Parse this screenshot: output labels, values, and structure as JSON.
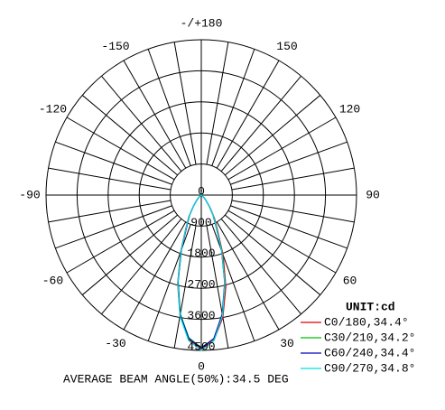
{
  "chart_data": {
    "type": "polar",
    "title": "AVERAGE BEAM ANGLE(50%):34.5 DEG",
    "legend_title": "UNIT:cd",
    "rlim": [
      0,
      4500
    ],
    "rticks": [
      0,
      900,
      1800,
      2700,
      3600,
      4500
    ],
    "angle_ticks": [
      {
        "value": 180,
        "label": "-/+180"
      },
      150,
      120,
      90,
      60,
      30,
      0,
      -30,
      -60,
      -90,
      -120,
      -150
    ],
    "angle_grid_step": 10,
    "legend": "lower right",
    "x": [
      -90,
      -60,
      -45,
      -40,
      -35,
      -30,
      -25,
      -20,
      -15,
      -10,
      -5,
      0,
      5,
      10,
      15,
      20,
      25,
      30,
      35,
      40,
      45,
      60,
      90
    ],
    "series": [
      {
        "name": "C0/180,34.4°",
        "color": "#e00000",
        "values": [
          0,
          20,
          140,
          240,
          420,
          720,
          1050,
          1750,
          2650,
          3550,
          4200,
          4450,
          4220,
          3600,
          2750,
          1850,
          1100,
          760,
          450,
          250,
          150,
          25,
          0
        ]
      },
      {
        "name": "C30/210,34.2°",
        "color": "#00c000",
        "values": [
          0,
          20,
          130,
          220,
          400,
          690,
          1000,
          1700,
          2600,
          3500,
          4150,
          4420,
          4180,
          3520,
          2650,
          1750,
          1020,
          700,
          410,
          230,
          135,
          20,
          0
        ]
      },
      {
        "name": "C60/240,34.4°",
        "color": "#0000c0",
        "values": [
          0,
          20,
          130,
          220,
          390,
          680,
          980,
          1680,
          2600,
          3520,
          4170,
          4430,
          4170,
          3500,
          2620,
          1720,
          1000,
          690,
          400,
          220,
          130,
          20,
          0
        ]
      },
      {
        "name": "C90/270,34.8°",
        "color": "#00dede",
        "values": [
          0,
          20,
          140,
          230,
          410,
          700,
          1020,
          1720,
          2630,
          3560,
          4230,
          4500,
          4230,
          3540,
          2640,
          1740,
          1030,
          710,
          420,
          240,
          140,
          20,
          0
        ]
      }
    ]
  }
}
